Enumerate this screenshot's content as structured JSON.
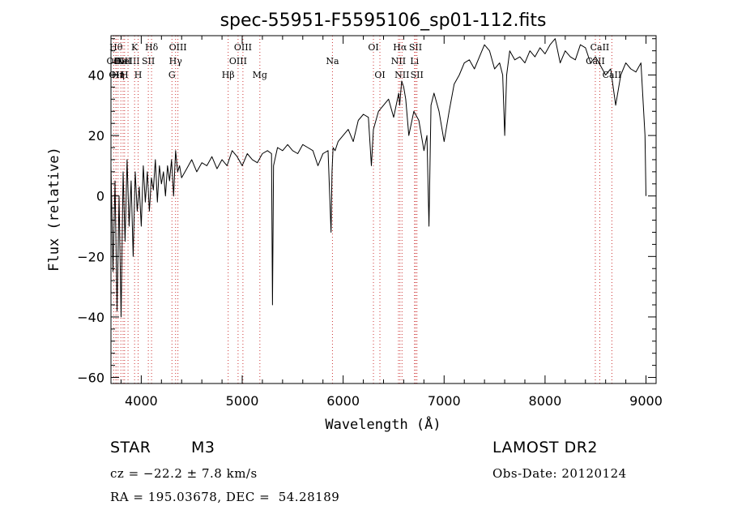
{
  "chart_data": {
    "type": "line",
    "title": "spec-55951-F5595106_sp01-112.fits",
    "xlabel": "Wavelength (Å)",
    "ylabel": "Flux (relative)",
    "xlim": [
      3700,
      9100
    ],
    "ylim": [
      -62,
      53
    ],
    "xticks": [
      4000,
      5000,
      6000,
      7000,
      8000,
      9000
    ],
    "yticks": [
      -60,
      -40,
      -20,
      0,
      20,
      40
    ],
    "line_color": "#000000",
    "marker_color": "#cc3333",
    "series": [
      {
        "x": [
          3700,
          3720,
          3740,
          3760,
          3780,
          3800,
          3820,
          3840,
          3860,
          3880,
          3900,
          3920,
          3940,
          3960,
          3980,
          4000,
          4020,
          4040,
          4060,
          4080,
          4100,
          4120,
          4140,
          4160,
          4180,
          4200,
          4220,
          4240,
          4260,
          4280,
          4300,
          4320,
          4340,
          4360,
          4380,
          4400,
          4450,
          4500,
          4550,
          4600,
          4650,
          4700,
          4750,
          4800,
          4850,
          4900,
          4950,
          5000,
          5050,
          5100,
          5150,
          5200,
          5250,
          5290,
          5300,
          5310,
          5350,
          5400,
          5450,
          5500,
          5550,
          5600,
          5650,
          5700,
          5750,
          5800,
          5850,
          5880,
          5890,
          5900,
          5920,
          5950,
          6000,
          6050,
          6100,
          6150,
          6200,
          6250,
          6280,
          6300,
          6350,
          6400,
          6450,
          6500,
          6550,
          6560,
          6580,
          6600,
          6620,
          6650,
          6700,
          6750,
          6800,
          6830,
          6850,
          6870,
          6900,
          6950,
          7000,
          7050,
          7100,
          7150,
          7200,
          7250,
          7300,
          7350,
          7400,
          7450,
          7500,
          7550,
          7580,
          7600,
          7620,
          7650,
          7700,
          7750,
          7800,
          7850,
          7900,
          7950,
          8000,
          8050,
          8100,
          8150,
          8200,
          8250,
          8300,
          8350,
          8400,
          8450,
          8500,
          8550,
          8600,
          8650,
          8700,
          8750,
          8800,
          8850,
          8900,
          8950,
          8990,
          9000
        ],
        "y": [
          10,
          -25,
          5,
          -38,
          0,
          -40,
          8,
          -15,
          12,
          -10,
          5,
          -20,
          8,
          -5,
          3,
          -10,
          10,
          -2,
          8,
          -5,
          6,
          2,
          12,
          -2,
          10,
          4,
          8,
          0,
          10,
          5,
          12,
          0,
          15,
          8,
          10,
          6,
          9,
          12,
          8,
          11,
          10,
          13,
          9,
          12,
          10,
          15,
          13,
          10,
          14,
          12,
          11,
          14,
          15,
          14,
          -36,
          10,
          16,
          15,
          17,
          15,
          14,
          17,
          16,
          15,
          10,
          14,
          15,
          -12,
          8,
          16,
          15,
          18,
          20,
          22,
          18,
          25,
          27,
          26,
          10,
          22,
          28,
          30,
          32,
          26,
          34,
          30,
          38,
          36,
          32,
          20,
          28,
          25,
          15,
          20,
          -10,
          30,
          34,
          28,
          18,
          28,
          37,
          40,
          44,
          45,
          42,
          46,
          50,
          48,
          42,
          44,
          40,
          20,
          40,
          48,
          45,
          46,
          44,
          48,
          46,
          49,
          47,
          50,
          52,
          44,
          48,
          46,
          45,
          50,
          49,
          44,
          46,
          43,
          40,
          42,
          30,
          40,
          44,
          42,
          41,
          44,
          20,
          0
        ]
      }
    ],
    "line_markers": [
      {
        "x": 3727,
        "label": "OII",
        "row": 1
      },
      {
        "x": 3750,
        "label": "Hθ",
        "row": 0
      },
      {
        "x": 3750,
        "label": "OII",
        "row": 2
      },
      {
        "x": 3770,
        "label": "Hη",
        "row": 2
      },
      {
        "x": 3798,
        "label": "OII",
        "row": 1
      },
      {
        "x": 3820,
        "label": "HeI",
        "row": 1
      },
      {
        "x": 3835,
        "label": "H",
        "row": 2
      },
      {
        "x": 3869,
        "label": "NeIII",
        "row": 1
      },
      {
        "x": 3934,
        "label": "K",
        "row": 0
      },
      {
        "x": 3969,
        "label": "H",
        "row": 2
      },
      {
        "x": 4070,
        "label": "SII",
        "row": 1
      },
      {
        "x": 4102,
        "label": "Hδ",
        "row": 0
      },
      {
        "x": 4304,
        "label": "G",
        "row": 2
      },
      {
        "x": 4340,
        "label": "Hγ",
        "row": 1
      },
      {
        "x": 4363,
        "label": "OIII",
        "row": 0
      },
      {
        "x": 4861,
        "label": "Hβ",
        "row": 2
      },
      {
        "x": 4959,
        "label": "OIII",
        "row": 1
      },
      {
        "x": 5007,
        "label": "OIII",
        "row": 0
      },
      {
        "x": 5175,
        "label": "Mg",
        "row": 2
      },
      {
        "x": 5894,
        "label": "Na",
        "row": 1
      },
      {
        "x": 6300,
        "label": "OI",
        "row": 0
      },
      {
        "x": 6364,
        "label": "OI",
        "row": 2
      },
      {
        "x": 6548,
        "label": "NII",
        "row": 1
      },
      {
        "x": 6563,
        "label": "Hα",
        "row": 0
      },
      {
        "x": 6583,
        "label": "NII",
        "row": 2
      },
      {
        "x": 6707,
        "label": "Li",
        "row": 1
      },
      {
        "x": 6717,
        "label": "SII",
        "row": 0
      },
      {
        "x": 6731,
        "label": "SII",
        "row": 2
      },
      {
        "x": 8498,
        "label": "CaII",
        "row": 1
      },
      {
        "x": 8542,
        "label": "CaII",
        "row": 0
      },
      {
        "x": 8662,
        "label": "CaII",
        "row": 2
      }
    ]
  },
  "info": {
    "class_label": "STAR",
    "subclass_label": "M3",
    "survey": "LAMOST DR2",
    "cz": "cz = −22.2 ± 7.8 km/s",
    "obs_date": "Obs-Date: 20120124",
    "coords": "RA = 195.03678, DEC =  54.28189"
  }
}
